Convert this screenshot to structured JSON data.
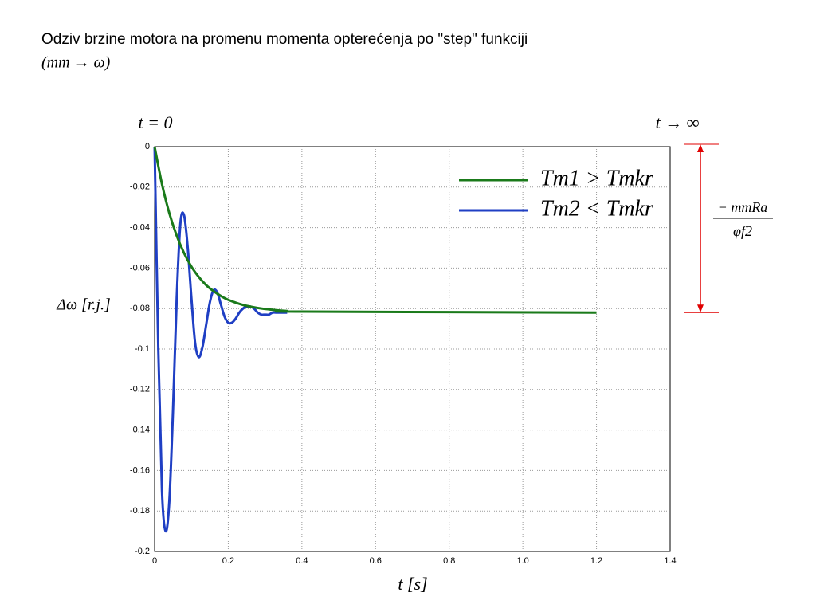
{
  "chart_data": {
    "type": "line",
    "title": "Odziv brzine motora na promenu momenta opterećenja po \"step\" funkciji",
    "subtitle": "(mm → ω)",
    "annotations": {
      "start": "t = 0",
      "end": "t → ∞",
      "delta_num": "− mmRa",
      "delta_den": "φf2"
    },
    "xlabel": "t [s]",
    "ylabel": "Δω [r.j.]",
    "xlim": [
      0,
      1.4
    ],
    "ylim": [
      -0.2,
      0
    ],
    "xticks": [
      0,
      0.2,
      0.4,
      0.6,
      0.8,
      {
        "value": 1,
        "label": "1.0"
      },
      1.2,
      1.4
    ],
    "yticks": [
      0,
      -0.02,
      -0.04,
      -0.06,
      -0.08,
      -0.1,
      -0.12,
      -0.14,
      -0.16,
      -0.18,
      -0.2
    ],
    "grid": true,
    "legend": "upper right",
    "series": [
      {
        "name": "Tm1 > Tmkr",
        "color": "#1a7a1a",
        "x": [
          0,
          0.02,
          0.04,
          0.06,
          0.08,
          0.1,
          0.12,
          0.14,
          0.16,
          0.18,
          0.2,
          0.24,
          0.28,
          0.32,
          0.36,
          0.4,
          1.2
        ],
        "values": [
          0,
          -0.0185,
          -0.0329,
          -0.044,
          -0.0526,
          -0.0593,
          -0.0644,
          -0.0684,
          -0.0714,
          -0.0738,
          -0.0757,
          -0.0782,
          -0.0797,
          -0.0806,
          -0.0812,
          -0.0815,
          -0.082
        ]
      },
      {
        "name": "Tm2 < Tmkr",
        "color": "#1f3fc4",
        "x": [
          0,
          0.01,
          0.02,
          0.03,
          0.04,
          0.05,
          0.06,
          0.07,
          0.08,
          0.09,
          0.1,
          0.11,
          0.12,
          0.13,
          0.14,
          0.15,
          0.16,
          0.17,
          0.18,
          0.19,
          0.2,
          0.21,
          0.22,
          0.23,
          0.24,
          0.25,
          0.26,
          0.27,
          0.28,
          0.29,
          0.3,
          0.31,
          0.32,
          0.33,
          0.34,
          0.35,
          0.36
        ],
        "values": [
          0,
          -0.1,
          -0.17,
          -0.19,
          -0.175,
          -0.13,
          -0.075,
          -0.038,
          -0.034,
          -0.05,
          -0.075,
          -0.097,
          -0.104,
          -0.099,
          -0.088,
          -0.077,
          -0.071,
          -0.072,
          -0.078,
          -0.084,
          -0.087,
          -0.087,
          -0.085,
          -0.082,
          -0.08,
          -0.079,
          -0.079,
          -0.08,
          -0.082,
          -0.083,
          -0.083,
          -0.083,
          -0.082,
          -0.082,
          -0.082,
          -0.082,
          -0.082
        ]
      }
    ]
  }
}
